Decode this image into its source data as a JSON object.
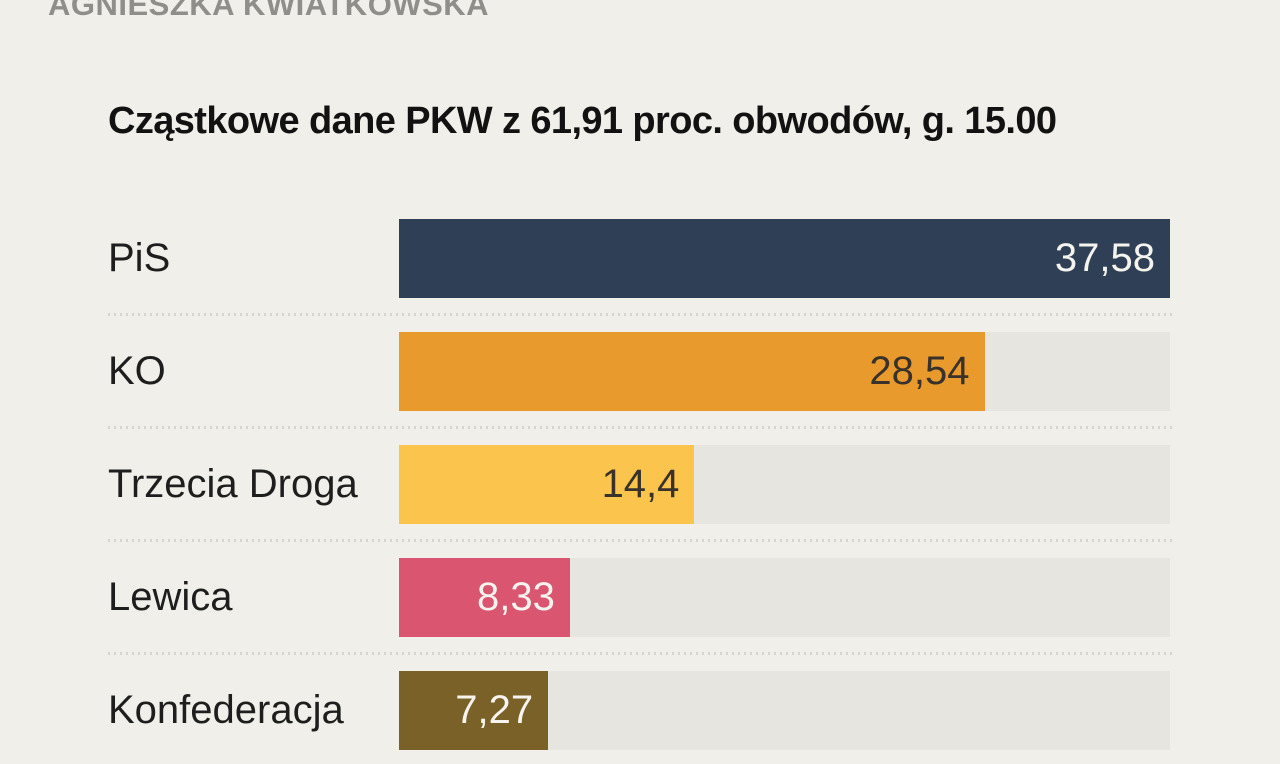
{
  "byline": "AGNIESZKA KWIATKOWSKA",
  "header": {
    "title": "Cząstkowe dane PKW z 61,91 proc. obwodów, g. 15.00"
  },
  "colors": {
    "background": "#f0efea",
    "track": "#e6e5e0",
    "separator_dots": "#d6d5cf",
    "title_text": "#121212",
    "label_text": "#1e1e1e",
    "byline_text": "#8f8e8a"
  },
  "chart_data": {
    "type": "bar",
    "orientation": "horizontal",
    "title": "Cząstkowe dane PKW z 61,91 proc. obwodów, g. 15.00",
    "xlabel": "",
    "ylabel": "",
    "xlim": [
      0,
      37.58
    ],
    "grid": false,
    "legend": false,
    "categories": [
      "PiS",
      "KO",
      "Trzecia Droga",
      "Lewica",
      "Konfederacja"
    ],
    "values": [
      37.58,
      28.54,
      14.4,
      8.33,
      7.27
    ],
    "value_labels": [
      "37,58",
      "28,54",
      "14,4",
      "8,33",
      "7,27"
    ],
    "bar_colors": [
      "#2f4056",
      "#e89a2d",
      "#fbc54d",
      "#d95570",
      "#7a6127"
    ],
    "value_text_colors": [
      "#f4f3ee",
      "#39322a",
      "#39322a",
      "#f7f3ef",
      "#f7f3ef"
    ],
    "unit": "proc."
  }
}
